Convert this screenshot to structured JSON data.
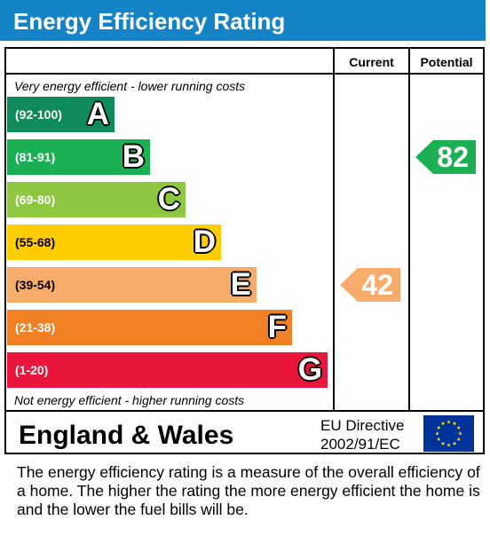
{
  "header": {
    "title": "Energy Efficiency Rating"
  },
  "table": {
    "current_label": "Current",
    "potential_label": "Potential",
    "top_note": "Very energy efficient - lower running costs",
    "bottom_note": "Not energy efficient - higher running costs"
  },
  "chart_data": {
    "type": "bar",
    "title": "Energy Efficiency Rating",
    "categories": [
      "A",
      "B",
      "C",
      "D",
      "E",
      "F",
      "G"
    ],
    "bands": [
      {
        "letter": "A",
        "range": "(92-100)",
        "color": "#0f8a5a"
      },
      {
        "letter": "B",
        "range": "(81-91)",
        "color": "#1cb055"
      },
      {
        "letter": "C",
        "range": "(69-80)",
        "color": "#8dc63f"
      },
      {
        "letter": "D",
        "range": "(55-68)",
        "color": "#ffcc00"
      },
      {
        "letter": "E",
        "range": "(39-54)",
        "color": "#f7ac6b"
      },
      {
        "letter": "F",
        "range": "(21-38)",
        "color": "#ef8023"
      },
      {
        "letter": "G",
        "range": "(1-20)",
        "color": "#e9153b"
      }
    ],
    "series": [
      {
        "name": "Current",
        "value": 42,
        "band": "E",
        "color": "#f7ac6b"
      },
      {
        "name": "Potential",
        "value": 82,
        "band": "B",
        "color": "#1cb055"
      }
    ]
  },
  "footer": {
    "country": "England & Wales",
    "directive_line1": "EU Directive",
    "directive_line2": "2002/91/EC",
    "flag_icon": "eu-flag-icon"
  },
  "description": "The energy efficiency rating is a measure of the overall efficiency of a home.  The higher the rating the more energy efficient the home is and the lower the fuel bills will be."
}
